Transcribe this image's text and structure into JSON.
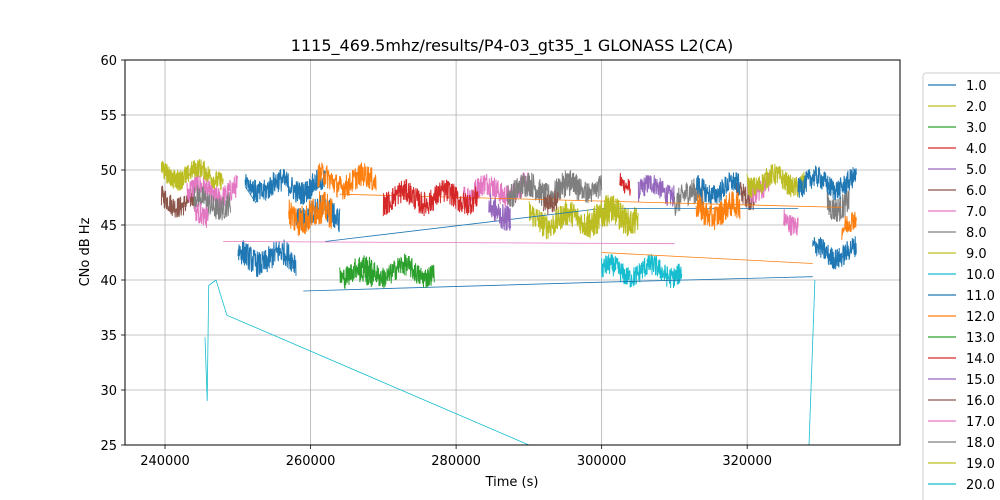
{
  "chart_data": {
    "type": "line",
    "title": "1115_469.5mhz/results/P4-03_gt35_1 GLONASS L2(CA)",
    "xlabel": "Time (s)",
    "ylabel": "CNo dB Hz",
    "xlim": [
      234500,
      341000
    ],
    "ylim": [
      25,
      60
    ],
    "xticks": [
      240000,
      260000,
      280000,
      300000,
      320000
    ],
    "yticks": [
      25,
      30,
      35,
      40,
      45,
      50,
      55,
      60
    ],
    "grid": true,
    "legend_position": "right, outside plot",
    "series": [
      {
        "name": "1.0",
        "color": "#1f77b4",
        "segments": [
          {
            "x0": 251000,
            "x1": 252500,
            "y": 48.5,
            "noise": 0.8
          }
        ],
        "trend": [
          [
            251000,
            48.5
          ],
          [
            252500,
            47.0
          ]
        ]
      },
      {
        "name": "2.0",
        "color": "#bcbd22",
        "segments": [
          {
            "x0": 239500,
            "x1": 243000,
            "y": 49.8,
            "noise": 0.8
          }
        ]
      },
      {
        "name": "3.0",
        "color": "#2ca02c",
        "segments": [
          {
            "x0": 266500,
            "x1": 268500,
            "y": 40.0,
            "noise": 1.0
          }
        ]
      },
      {
        "name": "4.0",
        "color": "#d62728",
        "segments": [
          {
            "x0": 302500,
            "x1": 304000,
            "y": 49.0,
            "noise": 0.8
          }
        ]
      },
      {
        "name": "5.0",
        "color": "#9467bd",
        "segments": [
          {
            "x0": 305000,
            "x1": 310000,
            "y": 48.2,
            "noise": 1.0
          }
        ]
      },
      {
        "name": "6.0",
        "color": "#8c564b",
        "segments": [
          {
            "x0": 239500,
            "x1": 244000,
            "y": 47.2,
            "noise": 1.0
          },
          {
            "x0": 318500,
            "x1": 321000,
            "y": 47.8,
            "noise": 1.0
          }
        ]
      },
      {
        "name": "7.0",
        "color": "#e377c2",
        "segments": [
          {
            "x0": 243000,
            "x1": 250000,
            "y": 48.0,
            "noise": 1.1
          },
          {
            "x0": 281000,
            "x1": 290000,
            "y": 48.2,
            "noise": 1.1
          },
          {
            "x0": 320000,
            "x1": 323000,
            "y": 48.5,
            "noise": 1.0
          },
          {
            "x0": 325000,
            "x1": 327000,
            "y": 45.5,
            "noise": 1.0
          }
        ]
      },
      {
        "name": "8.0",
        "color": "#7f7f7f",
        "segments": [
          {
            "x0": 244000,
            "x1": 249000,
            "y": 47.0,
            "noise": 1.1
          },
          {
            "x0": 287000,
            "x1": 297000,
            "y": 48.2,
            "noise": 1.2
          },
          {
            "x0": 310000,
            "x1": 314000,
            "y": 47.5,
            "noise": 1.2
          },
          {
            "x0": 331000,
            "x1": 334000,
            "y": 47.0,
            "noise": 1.2
          }
        ]
      },
      {
        "name": "9.0",
        "color": "#bcbd22",
        "segments": [
          {
            "x0": 239500,
            "x1": 248000,
            "y": 49.6,
            "noise": 0.9
          },
          {
            "x0": 290000,
            "x1": 301000,
            "y": 45.5,
            "noise": 1.2
          },
          {
            "x0": 301000,
            "x1": 305000,
            "y": 45.8,
            "noise": 1.3
          },
          {
            "x0": 320000,
            "x1": 328000,
            "y": 49.0,
            "noise": 1.0
          }
        ]
      },
      {
        "name": "10.0",
        "color": "#17becf",
        "segments": [
          {
            "x0": 300000,
            "x1": 311000,
            "y": 40.8,
            "noise": 1.0
          }
        ],
        "trend": [
          [
            245500,
            34.8
          ],
          [
            245800,
            29.0
          ],
          [
            246000,
            39.5
          ],
          [
            247000,
            40.0
          ],
          [
            248500,
            36.8
          ],
          [
            290000,
            25.0
          ]
        ],
        "trend2": [
          [
            328500,
            25.0
          ],
          [
            329300,
            40.0
          ]
        ]
      },
      {
        "name": "11.0",
        "color": "#1f77b4",
        "segments": [
          {
            "x0": 250000,
            "x1": 258000,
            "y": 42.0,
            "noise": 1.2
          },
          {
            "x0": 252000,
            "x1": 262000,
            "y": 48.5,
            "noise": 1.1
          },
          {
            "x0": 258000,
            "x1": 264000,
            "y": 46.0,
            "noise": 1.2
          },
          {
            "x0": 313000,
            "x1": 319000,
            "y": 48.3,
            "noise": 1.0
          },
          {
            "x0": 327000,
            "x1": 335000,
            "y": 48.8,
            "noise": 1.0
          },
          {
            "x0": 329000,
            "x1": 335000,
            "y": 42.5,
            "noise": 1.0
          }
        ],
        "trend": [
          [
            259000,
            39.0
          ],
          [
            300000,
            39.8
          ],
          [
            329000,
            40.3
          ]
        ],
        "trend2": [
          [
            262000,
            43.5
          ],
          [
            300000,
            46.5
          ],
          [
            327000,
            46.5
          ]
        ]
      },
      {
        "name": "12.0",
        "color": "#ff7f0e",
        "segments": [
          {
            "x0": 257000,
            "x1": 263000,
            "y": 46.0,
            "noise": 1.5
          },
          {
            "x0": 261000,
            "x1": 269000,
            "y": 49.0,
            "noise": 1.1
          },
          {
            "x0": 313000,
            "x1": 319000,
            "y": 46.3,
            "noise": 1.2
          },
          {
            "x0": 333000,
            "x1": 335000,
            "y": 45.0,
            "noise": 1.0
          }
        ],
        "trend": [
          [
            264000,
            47.8
          ],
          [
            333000,
            46.6
          ]
        ],
        "trend2": [
          [
            300000,
            42.5
          ],
          [
            329000,
            41.5
          ]
        ]
      },
      {
        "name": "13.0",
        "color": "#2ca02c",
        "segments": [
          {
            "x0": 264000,
            "x1": 277000,
            "y": 40.8,
            "noise": 1.0
          }
        ]
      },
      {
        "name": "14.0",
        "color": "#d62728",
        "segments": [
          {
            "x0": 270000,
            "x1": 283000,
            "y": 47.5,
            "noise": 1.1
          }
        ]
      },
      {
        "name": "15.0",
        "color": "#9467bd",
        "segments": [
          {
            "x0": 284500,
            "x1": 287500,
            "y": 46.2,
            "noise": 1.2
          }
        ]
      },
      {
        "name": "16.0",
        "color": "#8c564b",
        "segments": [
          {
            "x0": 292000,
            "x1": 294000,
            "y": 47.5,
            "noise": 1.0
          }
        ]
      },
      {
        "name": "17.0",
        "color": "#e377c2",
        "segments": [
          {
            "x0": 244000,
            "x1": 246000,
            "y": 45.5,
            "noise": 1.0
          }
        ],
        "trend": [
          [
            248000,
            43.5
          ],
          [
            310000,
            43.3
          ]
        ]
      },
      {
        "name": "18.0",
        "color": "#7f7f7f",
        "segments": [
          {
            "x0": 295000,
            "x1": 300000,
            "y": 48.5,
            "noise": 1.0
          }
        ]
      },
      {
        "name": "19.0",
        "color": "#bcbd22",
        "segments": [
          {
            "x0": 298000,
            "x1": 303000,
            "y": 46.0,
            "noise": 1.2
          }
        ]
      },
      {
        "name": "20.0",
        "color": "#17becf",
        "segments": []
      }
    ]
  }
}
